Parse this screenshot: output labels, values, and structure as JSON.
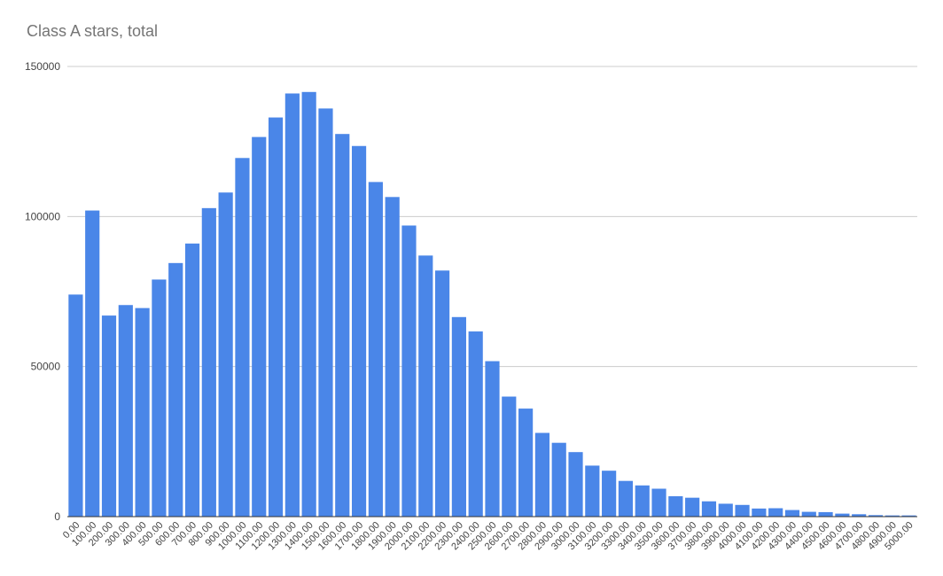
{
  "chart_data": {
    "type": "bar",
    "title": "Class A stars, total",
    "xlabel": "",
    "ylabel": "",
    "ylim": [
      0,
      150000
    ],
    "y_ticks": [
      "0",
      "50000",
      "100000",
      "150000"
    ],
    "grid": true,
    "legend": "none",
    "bar_color": "#4a86e8",
    "categories": [
      "0.00",
      "100.00",
      "200.00",
      "300.00",
      "400.00",
      "500.00",
      "600.00",
      "700.00",
      "800.00",
      "900.00",
      "1000.00",
      "1100.00",
      "1200.00",
      "1300.00",
      "1400.00",
      "1500.00",
      "1600.00",
      "1700.00",
      "1800.00",
      "1900.00",
      "2000.00",
      "2100.00",
      "2200.00",
      "2300.00",
      "2400.00",
      "2500.00",
      "2600.00",
      "2700.00",
      "2800.00",
      "2900.00",
      "3000.00",
      "3100.00",
      "3200.00",
      "3300.00",
      "3400.00",
      "3500.00",
      "3600.00",
      "3700.00",
      "3800.00",
      "3900.00",
      "4000.00",
      "4100.00",
      "4200.00",
      "4300.00",
      "4400.00",
      "4500.00",
      "4600.00",
      "4700.00",
      "4800.00",
      "4900.00",
      "5000.00"
    ],
    "values": [
      74000,
      102000,
      67000,
      70500,
      69500,
      79000,
      84500,
      91000,
      102800,
      108000,
      119500,
      126500,
      133000,
      141000,
      141500,
      136000,
      127500,
      123500,
      111500,
      106500,
      97000,
      87000,
      82000,
      66500,
      61700,
      51800,
      40000,
      36000,
      27900,
      24600,
      21500,
      17000,
      15300,
      11900,
      10400,
      9300,
      6800,
      6300,
      5100,
      4300,
      3900,
      2700,
      2800,
      2200,
      1600,
      1500,
      1000,
      800,
      500,
      400,
      400
    ]
  }
}
